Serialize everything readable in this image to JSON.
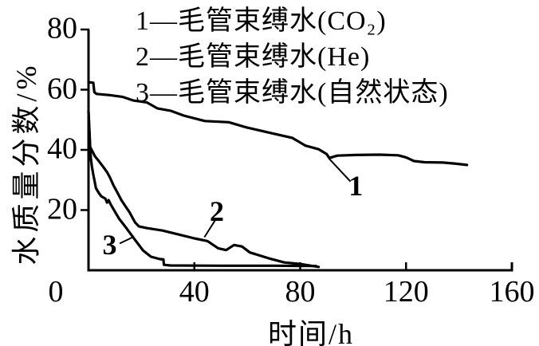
{
  "figure": {
    "background": "#ffffff",
    "ink": "#000000"
  },
  "chart_data": {
    "type": "line",
    "title": "",
    "xlabel": "时间/h",
    "ylabel": "水质量分数/%",
    "xlim": [
      0,
      160
    ],
    "ylim": [
      0,
      80
    ],
    "xticks": [
      0,
      40,
      80,
      120,
      160
    ],
    "yticks": [
      0,
      20,
      40,
      60,
      80
    ],
    "grid": false,
    "legend_position": "top-inside",
    "line_color": "#000000",
    "series": [
      {
        "label": "1",
        "name": "1—毛管束缚水(CO₂)",
        "points": [
          [
            0,
            62.5
          ],
          [
            1.8,
            62.3
          ],
          [
            2.2,
            59.2
          ],
          [
            3,
            58.6
          ],
          [
            8,
            58.2
          ],
          [
            13,
            57.6
          ],
          [
            17,
            56.4
          ],
          [
            22,
            55.8
          ],
          [
            26,
            53.8
          ],
          [
            31,
            53.0
          ],
          [
            36,
            51.4
          ],
          [
            44,
            49.6
          ],
          [
            53,
            49.2
          ],
          [
            60,
            47.4
          ],
          [
            69,
            45.6
          ],
          [
            77,
            44.0
          ],
          [
            82,
            41.4
          ],
          [
            87,
            40.2
          ],
          [
            90,
            38.6
          ],
          [
            91,
            37.3
          ],
          [
            94,
            38.1
          ],
          [
            101,
            38.3
          ],
          [
            110,
            38.4
          ],
          [
            117,
            38.2
          ],
          [
            120,
            37.5
          ],
          [
            123,
            36.3
          ],
          [
            127,
            35.9
          ],
          [
            134,
            35.8
          ],
          [
            139,
            35.4
          ],
          [
            143,
            35.0
          ]
        ]
      },
      {
        "label": "2",
        "name": "2—毛管束缚水(He)",
        "points": [
          [
            0,
            52.7
          ],
          [
            0.6,
            41.0
          ],
          [
            2.4,
            37.9
          ],
          [
            3.9,
            36.3
          ],
          [
            5.5,
            34.4
          ],
          [
            7,
            32.6
          ],
          [
            8,
            31.0
          ],
          [
            9.4,
            28.3
          ],
          [
            11,
            25.7
          ],
          [
            12.4,
            23.3
          ],
          [
            14,
            21.2
          ],
          [
            15.5,
            19.3
          ],
          [
            16.3,
            18.0
          ],
          [
            17.6,
            15.9
          ],
          [
            19,
            14.6
          ],
          [
            22,
            14.0
          ],
          [
            28,
            13.2
          ],
          [
            34,
            11.9
          ],
          [
            40,
            10.6
          ],
          [
            45,
            9.7
          ],
          [
            49,
            7.3
          ],
          [
            52,
            6.7
          ],
          [
            55,
            8.4
          ],
          [
            58,
            7.9
          ],
          [
            61,
            5.9
          ],
          [
            68,
            4.0
          ],
          [
            74,
            2.6
          ],
          [
            80,
            2.1
          ],
          [
            87,
            1.1
          ]
        ]
      },
      {
        "label": "3",
        "name": "3—毛管束缚水(自然状态)",
        "points": [
          [
            0,
            52.7
          ],
          [
            0.6,
            41.0
          ],
          [
            0.9,
            37.0
          ],
          [
            1.3,
            34.4
          ],
          [
            1.8,
            31.8
          ],
          [
            2.4,
            29.1
          ],
          [
            2.8,
            27.3
          ],
          [
            3.9,
            25.7
          ],
          [
            4.8,
            24.6
          ],
          [
            6.4,
            23.8
          ],
          [
            7,
            22.5
          ],
          [
            7.6,
            23.3
          ],
          [
            8.5,
            21.7
          ],
          [
            11.5,
            17.2
          ],
          [
            14.5,
            13.8
          ],
          [
            17.6,
            10.1
          ],
          [
            20.6,
            6.6
          ],
          [
            23.6,
            4.5
          ],
          [
            27,
            3.7
          ],
          [
            28.3,
            3.6
          ],
          [
            28.5,
            1.8
          ],
          [
            31,
            1.6
          ],
          [
            50,
            1.5
          ],
          [
            70,
            1.5
          ],
          [
            86,
            1.4
          ]
        ]
      }
    ],
    "annotations": [
      {
        "text": "1",
        "label_at": [
          101,
          28.0
        ],
        "leader": [
          [
            90.8,
            37.2
          ],
          [
            99.0,
            29.5
          ]
        ]
      },
      {
        "text": "2",
        "label_at": [
          48.5,
          19.5
        ],
        "leader": [
          [
            48.0,
            16.8
          ],
          [
            43.8,
            11.0
          ]
        ]
      },
      {
        "text": "3",
        "label_at": [
          8.0,
          8.6
        ],
        "leader": [
          [
            11.8,
            8.9
          ],
          [
            17.2,
            11.2
          ]
        ]
      }
    ]
  }
}
